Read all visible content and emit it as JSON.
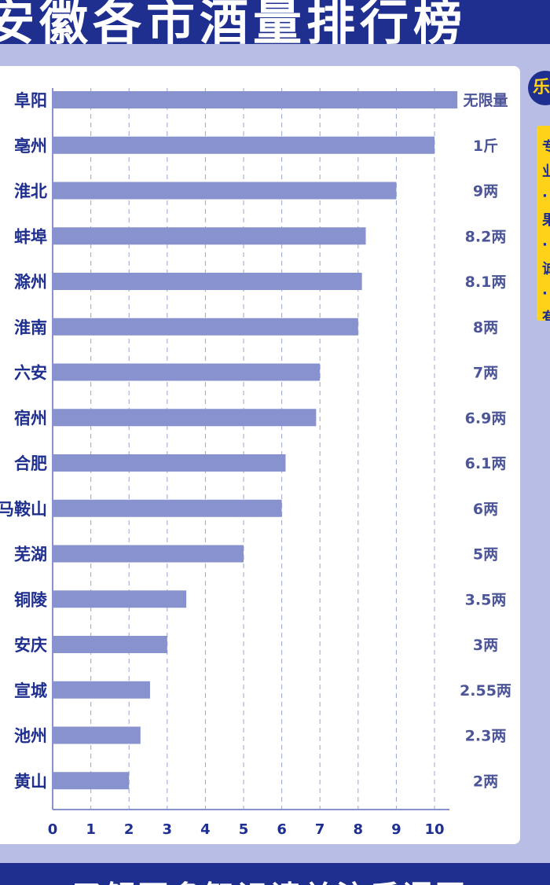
{
  "header": {
    "title": "安徽各市酒量排行榜"
  },
  "side": {
    "badge_text": "乐",
    "note_text": "专业·果·诚·有·流·度"
  },
  "footer": {
    "text": "了解更多智识请关注后语图"
  },
  "colors": {
    "bar": "#8792cf",
    "header_bg": "#1e2f8f",
    "accent": "#ffd21a",
    "page_bg": "#b8bde6"
  },
  "chart_data": {
    "type": "bar",
    "orientation": "horizontal",
    "categories": [
      "阜阳",
      "亳州",
      "淮北",
      "蚌埠",
      "滁州",
      "淮南",
      "六安",
      "宿州",
      "合肥",
      "马鞍山",
      "芜湖",
      "铜陵",
      "安庆",
      "宣城",
      "池州",
      "黄山"
    ],
    "values": [
      10.6,
      10,
      9,
      8.2,
      8.1,
      8,
      7,
      6.9,
      6.1,
      6,
      5,
      3.5,
      3,
      2.55,
      2.3,
      2
    ],
    "value_labels": [
      "无限量",
      "1斤",
      "9两",
      "8.2两",
      "8.1两",
      "8两",
      "7两",
      "6.9两",
      "6.1两",
      "6两",
      "5两",
      "3.5两",
      "3两",
      "2.55两",
      "2.3两",
      "2两"
    ],
    "x_ticks": [
      "0",
      "1",
      "2",
      "3",
      "4",
      "5",
      "6",
      "7",
      "8",
      "9",
      "10"
    ],
    "xlim": [
      0,
      10.6
    ],
    "grid": "vertical dashed",
    "title": "",
    "xlabel": "",
    "ylabel": ""
  }
}
